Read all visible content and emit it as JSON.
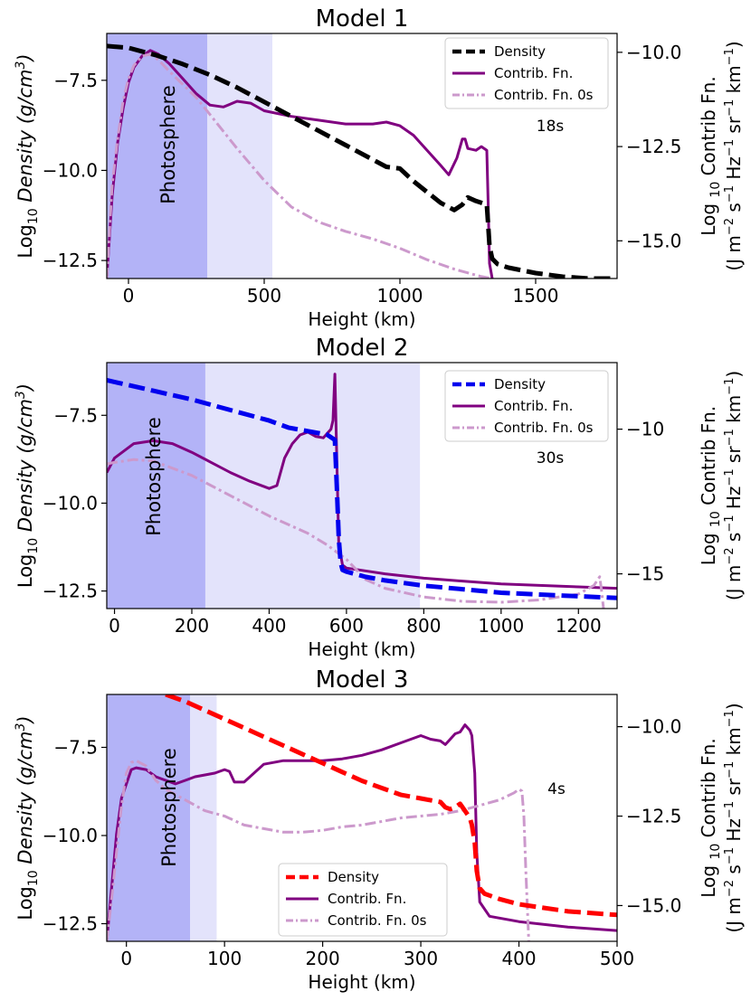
{
  "chart_data": [
    {
      "type": "line",
      "title": "Model 1",
      "xlabel": "Height (km)",
      "ylabel_left": "Log10 Density (g/cm3)",
      "ylabel_right_line1": "Log 10 Contrib Fn.",
      "ylabel_right_line2": "(J m-2 s-1 Hz-1 sr-1 km-1)",
      "xlim": [
        -80,
        1800
      ],
      "ylim_left": [
        -13.0,
        -6.2
      ],
      "ylim_right": [
        -16.0,
        -9.5
      ],
      "xticks": [
        0,
        500,
        1000,
        1500
      ],
      "yticks_left": [
        -7.5,
        -10.0,
        -12.5
      ],
      "yticks_right": [
        -10.0,
        -12.5,
        -15.0
      ],
      "density_color": "#000000",
      "photosphere_label": "Photosphere",
      "photosphere_dark": [
        -80,
        290
      ],
      "photosphere_light": [
        290,
        530
      ],
      "time_label": "18s",
      "legend": {
        "position": "top-right",
        "entries": [
          "Density",
          "Contrib. Fn.",
          "Contrib. Fn. 0s"
        ]
      },
      "series": [
        {
          "name": "Density",
          "axis": "left",
          "x": [
            -80,
            0,
            100,
            200,
            300,
            400,
            500,
            600,
            700,
            800,
            900,
            950,
            1000,
            1050,
            1100,
            1150,
            1200,
            1230,
            1250,
            1280,
            1300,
            1320,
            1325,
            1330,
            1340,
            1360,
            1400,
            1500,
            1600,
            1700,
            1800
          ],
          "values": [
            -6.55,
            -6.6,
            -6.8,
            -7.05,
            -7.35,
            -7.7,
            -8.1,
            -8.5,
            -8.9,
            -9.3,
            -9.7,
            -9.9,
            -9.95,
            -10.3,
            -10.6,
            -10.9,
            -11.1,
            -10.95,
            -10.75,
            -10.85,
            -10.9,
            -10.95,
            -11.5,
            -12.1,
            -12.45,
            -12.6,
            -12.7,
            -12.85,
            -12.95,
            -13.0,
            -13.0
          ]
        },
        {
          "name": "Contrib. Fn.",
          "axis": "right",
          "x": [
            -80,
            -60,
            -40,
            -20,
            0,
            20,
            50,
            80,
            110,
            150,
            200,
            250,
            300,
            350,
            400,
            450,
            500,
            600,
            700,
            800,
            900,
            950,
            1000,
            1050,
            1100,
            1150,
            1180,
            1210,
            1230,
            1240,
            1250,
            1280,
            1300,
            1320,
            1325,
            1330,
            1340
          ],
          "values": [
            -16.0,
            -13.8,
            -12.4,
            -11.5,
            -10.8,
            -10.4,
            -10.1,
            -9.95,
            -10.05,
            -10.3,
            -10.7,
            -11.1,
            -11.4,
            -11.45,
            -11.3,
            -11.35,
            -11.55,
            -11.7,
            -11.8,
            -11.9,
            -11.9,
            -11.85,
            -11.95,
            -12.2,
            -12.6,
            -13.0,
            -13.25,
            -12.8,
            -12.3,
            -12.3,
            -12.55,
            -12.6,
            -12.5,
            -12.6,
            -14.0,
            -15.6,
            -16.0
          ]
        },
        {
          "name": "Contrib. Fn. 0s",
          "axis": "right",
          "x": [
            -80,
            -60,
            -40,
            -20,
            0,
            20,
            50,
            80,
            110,
            150,
            200,
            250,
            300,
            400,
            500,
            600,
            700,
            800,
            900,
            1000,
            1100,
            1200,
            1300,
            1340
          ],
          "values": [
            -16.0,
            -13.5,
            -12.3,
            -11.3,
            -10.7,
            -10.35,
            -10.1,
            -10.05,
            -10.2,
            -10.5,
            -10.85,
            -11.2,
            -11.65,
            -12.55,
            -13.4,
            -14.1,
            -14.5,
            -14.75,
            -14.95,
            -15.2,
            -15.5,
            -15.75,
            -15.95,
            -16.0
          ]
        }
      ]
    },
    {
      "type": "line",
      "title": "Model 2",
      "xlabel": "Height (km)",
      "ylabel_left": "Log10 Density (g/cm3)",
      "ylabel_right_line1": "Log 10 Contrib Fn.",
      "ylabel_right_line2": "(J m-2 s-1 Hz-1 sr-1 km-1)",
      "xlim": [
        -20,
        1300
      ],
      "ylim_left": [
        -13.0,
        -6.0
      ],
      "ylim_right": [
        -16.2,
        -7.7
      ],
      "xticks": [
        0,
        200,
        400,
        600,
        800,
        1000,
        1200
      ],
      "yticks_left": [
        -7.5,
        -10.0,
        -12.5
      ],
      "yticks_right": [
        -10,
        -15
      ],
      "density_color": "#0000ee",
      "photosphere_label": "Photosphere",
      "photosphere_dark": [
        -20,
        235
      ],
      "photosphere_light": [
        235,
        790
      ],
      "time_label": "30s",
      "legend": {
        "position": "top-right",
        "entries": [
          "Density",
          "Contrib. Fn.",
          "Contrib. Fn. 0s"
        ]
      },
      "series": [
        {
          "name": "Density",
          "axis": "left",
          "x": [
            -20,
            0,
            100,
            200,
            300,
            400,
            450,
            500,
            550,
            570,
            575,
            580,
            585,
            590,
            600,
            650,
            700,
            800,
            900,
            1000,
            1100,
            1200,
            1300
          ],
          "values": [
            -6.5,
            -6.55,
            -6.8,
            -7.05,
            -7.35,
            -7.65,
            -7.85,
            -7.95,
            -8.05,
            -8.2,
            -9.5,
            -11.0,
            -11.7,
            -11.9,
            -11.95,
            -12.1,
            -12.2,
            -12.35,
            -12.45,
            -12.55,
            -12.6,
            -12.65,
            -12.7
          ]
        },
        {
          "name": "Contrib. Fn.",
          "axis": "right",
          "x": [
            -20,
            0,
            50,
            100,
            150,
            200,
            250,
            300,
            350,
            400,
            420,
            440,
            460,
            480,
            500,
            520,
            540,
            560,
            565,
            570,
            575,
            580,
            590,
            600,
            700,
            800,
            900,
            1000,
            1100,
            1200,
            1300
          ],
          "values": [
            -11.5,
            -11.0,
            -10.5,
            -10.4,
            -10.5,
            -10.8,
            -11.15,
            -11.5,
            -11.8,
            -12.05,
            -11.95,
            -11.0,
            -10.5,
            -10.2,
            -10.1,
            -10.25,
            -10.3,
            -10.0,
            -9.7,
            -8.1,
            -11.0,
            -14.0,
            -14.7,
            -14.8,
            -15.0,
            -15.15,
            -15.25,
            -15.35,
            -15.4,
            -15.45,
            -15.5
          ]
        },
        {
          "name": "Contrib. Fn. 0s",
          "axis": "right",
          "x": [
            -20,
            0,
            50,
            100,
            200,
            300,
            400,
            500,
            550,
            600,
            650,
            700,
            800,
            900,
            1000,
            1100,
            1200,
            1240,
            1255,
            1260,
            1265
          ],
          "values": [
            -11.2,
            -11.15,
            -11.05,
            -11.1,
            -11.6,
            -12.3,
            -13.0,
            -13.6,
            -14.0,
            -14.5,
            -15.2,
            -15.5,
            -15.8,
            -15.95,
            -15.98,
            -15.9,
            -15.7,
            -15.4,
            -15.1,
            -15.6,
            -16.2
          ]
        }
      ]
    },
    {
      "type": "line",
      "title": "Model 3",
      "xlabel": "Height (km)",
      "ylabel_left": "Log10 Density (g/cm3)",
      "ylabel_right_line1": "Log 10 Contrib Fn.",
      "ylabel_right_line2": "(J m-2 s-1 Hz-1 sr-1 km-1)",
      "xlim": [
        -20,
        500
      ],
      "ylim_left": [
        -13.0,
        -6.0
      ],
      "ylim_right": [
        -16.0,
        -9.1
      ],
      "xticks": [
        0,
        100,
        200,
        300,
        400,
        500
      ],
      "yticks_left": [
        -7.5,
        -10.0,
        -12.5
      ],
      "yticks_right": [
        -10.0,
        -12.5,
        -15.0
      ],
      "density_color": "#ff0000",
      "photosphere_label": "Photosphere",
      "photosphere_dark": [
        -20,
        65
      ],
      "photosphere_light": [
        65,
        92
      ],
      "time_label": "4s",
      "legend": {
        "position": "bottom-center",
        "entries": [
          "Density",
          "Contrib. Fn.",
          "Contrib. Fn. 0s"
        ]
      },
      "series": [
        {
          "name": "Density",
          "axis": "left",
          "x": [
            40,
            60,
            80,
            100,
            120,
            140,
            160,
            180,
            200,
            220,
            240,
            260,
            280,
            300,
            320,
            325,
            330,
            335,
            340,
            345,
            350,
            352,
            355,
            357,
            360,
            365,
            370,
            380,
            400,
            450,
            500
          ],
          "values": [
            -6.0,
            -6.2,
            -6.45,
            -6.7,
            -6.95,
            -7.2,
            -7.45,
            -7.7,
            -7.95,
            -8.2,
            -8.45,
            -8.65,
            -8.85,
            -8.95,
            -9.05,
            -9.2,
            -9.25,
            -9.2,
            -9.1,
            -9.3,
            -9.5,
            -9.7,
            -10.2,
            -11.0,
            -11.5,
            -11.65,
            -11.7,
            -11.8,
            -11.95,
            -12.15,
            -12.25
          ]
        },
        {
          "name": "Contrib. Fn.",
          "axis": "right",
          "x": [
            -20,
            -15,
            -10,
            -5,
            0,
            5,
            10,
            20,
            30,
            40,
            50,
            60,
            70,
            80,
            90,
            100,
            105,
            110,
            120,
            140,
            160,
            180,
            200,
            220,
            240,
            260,
            280,
            300,
            310,
            320,
            325,
            330,
            335,
            340,
            345,
            350,
            352,
            355,
            357,
            360,
            370,
            400,
            450,
            500
          ],
          "values": [
            -16.0,
            -14.5,
            -13.0,
            -12.0,
            -11.6,
            -11.2,
            -11.15,
            -11.2,
            -11.4,
            -11.5,
            -11.6,
            -11.5,
            -11.4,
            -11.35,
            -11.3,
            -11.2,
            -11.25,
            -11.55,
            -11.55,
            -11.05,
            -10.95,
            -10.95,
            -10.95,
            -10.9,
            -10.8,
            -10.65,
            -10.45,
            -10.25,
            -10.35,
            -10.4,
            -10.5,
            -10.35,
            -10.2,
            -10.15,
            -9.95,
            -10.1,
            -10.25,
            -11.3,
            -13.5,
            -14.9,
            -15.3,
            -15.45,
            -15.6,
            -15.7
          ]
        },
        {
          "name": "Contrib. Fn. 0s",
          "axis": "right",
          "x": [
            -20,
            -15,
            -10,
            -5,
            0,
            5,
            10,
            20,
            30,
            40,
            60,
            80,
            100,
            120,
            140,
            160,
            180,
            200,
            220,
            240,
            260,
            280,
            300,
            320,
            340,
            360,
            380,
            395,
            400,
            403,
            405,
            407,
            410
          ],
          "values": [
            -16.0,
            -14.8,
            -13.5,
            -12.2,
            -11.3,
            -11.0,
            -10.95,
            -11.1,
            -11.5,
            -11.75,
            -12.05,
            -12.35,
            -12.5,
            -12.75,
            -12.85,
            -12.95,
            -12.95,
            -12.9,
            -12.8,
            -12.75,
            -12.65,
            -12.55,
            -12.5,
            -12.45,
            -12.35,
            -12.2,
            -12.05,
            -11.85,
            -11.75,
            -11.8,
            -12.5,
            -14.0,
            -16.0
          ]
        }
      ]
    }
  ]
}
